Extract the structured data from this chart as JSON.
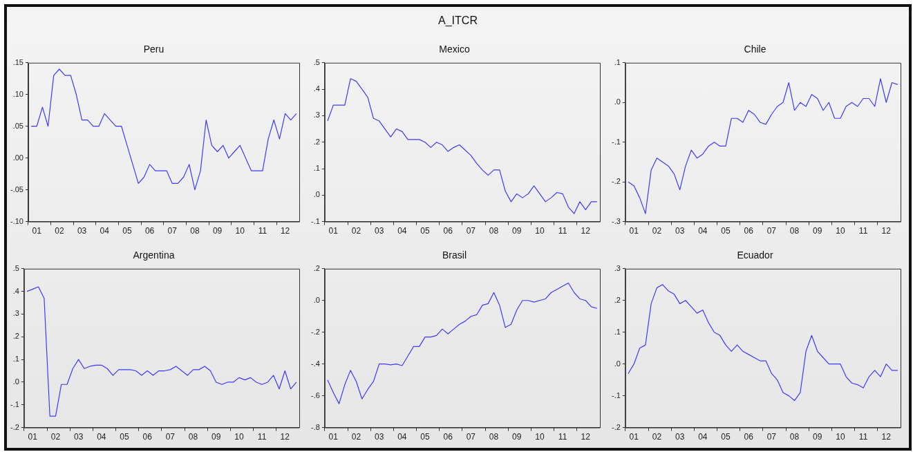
{
  "chart_data": [
    {
      "type": "other",
      "title": "A_ITCR"
    },
    {
      "type": "line",
      "title": "Peru",
      "categories": [
        null,
        "01",
        null,
        null,
        null,
        "02",
        null,
        null,
        null,
        "03",
        null,
        null,
        null,
        "04",
        null,
        null,
        null,
        "05",
        null,
        null,
        null,
        "06",
        null,
        null,
        null,
        "07",
        null,
        null,
        null,
        "08",
        null,
        null,
        null,
        "09",
        null,
        null,
        null,
        "10",
        null,
        null,
        null,
        "11",
        null,
        null,
        null,
        "12",
        null,
        null
      ],
      "series": [
        {
          "color": "#3b3bff",
          "values": [
            0.05,
            0.05,
            0.08,
            0.05,
            0.13,
            0.14,
            0.13,
            0.13,
            0.1,
            0.06,
            0.06,
            0.05,
            0.05,
            0.07,
            0.06,
            0.05,
            0.05,
            0.02,
            -0.01,
            -0.04,
            -0.03,
            -0.01,
            -0.02,
            -0.02,
            -0.02,
            -0.04,
            -0.04,
            -0.03,
            -0.01,
            -0.05,
            -0.02,
            0.06,
            0.02,
            0.01,
            0.02,
            0.0,
            0.01,
            0.02,
            0.0,
            -0.02,
            -0.02,
            -0.02,
            0.03,
            0.06,
            0.03,
            0.07,
            0.06,
            0.07
          ]
        }
      ],
      "ylim": [
        -0.1,
        0.15
      ],
      "yticks": [
        {
          "value": -0.1,
          "label": "-.10"
        },
        {
          "value": -0.05,
          "label": "-.05"
        },
        {
          "value": 0,
          "label": ".00"
        },
        {
          "value": 0.05,
          "label": ".05"
        },
        {
          "value": 0.1,
          "label": ".10"
        },
        {
          "value": 0.15,
          "label": ".15"
        }
      ]
    },
    {
      "type": "line",
      "title": "Mexico",
      "categories": [
        null,
        "01",
        null,
        null,
        null,
        "02",
        null,
        null,
        null,
        "03",
        null,
        null,
        null,
        "04",
        null,
        null,
        null,
        "05",
        null,
        null,
        null,
        "06",
        null,
        null,
        null,
        "07",
        null,
        null,
        null,
        "08",
        null,
        null,
        null,
        "09",
        null,
        null,
        null,
        "10",
        null,
        null,
        null,
        "11",
        null,
        null,
        null,
        "12",
        null,
        null
      ],
      "series": [
        {
          "color": "#3b3bff",
          "values": [
            0.28,
            0.34,
            0.34,
            0.34,
            0.44,
            0.43,
            0.4,
            0.37,
            0.29,
            0.28,
            0.25,
            0.22,
            0.25,
            0.24,
            0.21,
            0.21,
            0.21,
            0.2,
            0.18,
            0.2,
            0.19,
            0.165,
            0.18,
            0.19,
            0.17,
            0.15,
            0.12,
            0.095,
            0.075,
            0.095,
            0.095,
            0.015,
            -0.025,
            0.005,
            -0.01,
            0.005,
            0.035,
            0.005,
            -0.025,
            -0.01,
            0.01,
            0.005,
            -0.045,
            -0.07,
            -0.025,
            -0.055,
            -0.025,
            -0.025
          ]
        }
      ],
      "ylim": [
        -0.1,
        0.5
      ],
      "yticks": [
        {
          "value": -0.1,
          "label": "-.1"
        },
        {
          "value": 0,
          "label": ".0"
        },
        {
          "value": 0.1,
          "label": ".1"
        },
        {
          "value": 0.2,
          "label": ".2"
        },
        {
          "value": 0.3,
          "label": ".3"
        },
        {
          "value": 0.4,
          "label": ".4"
        },
        {
          "value": 0.5,
          "label": ".5"
        }
      ]
    },
    {
      "type": "line",
      "title": "Chile",
      "categories": [
        null,
        "01",
        null,
        null,
        null,
        "02",
        null,
        null,
        null,
        "03",
        null,
        null,
        null,
        "04",
        null,
        null,
        null,
        "05",
        null,
        null,
        null,
        "06",
        null,
        null,
        null,
        "07",
        null,
        null,
        null,
        "08",
        null,
        null,
        null,
        "09",
        null,
        null,
        null,
        "10",
        null,
        null,
        null,
        "11",
        null,
        null,
        null,
        "12",
        null,
        null
      ],
      "series": [
        {
          "color": "#3b3bff",
          "values": [
            -0.2,
            -0.21,
            -0.24,
            -0.28,
            -0.17,
            -0.14,
            -0.15,
            -0.16,
            -0.18,
            -0.22,
            -0.16,
            -0.12,
            -0.14,
            -0.13,
            -0.11,
            -0.1,
            -0.11,
            -0.11,
            -0.04,
            -0.04,
            -0.05,
            -0.02,
            -0.03,
            -0.05,
            -0.055,
            -0.03,
            -0.01,
            0.0,
            0.05,
            -0.02,
            0.0,
            -0.01,
            0.02,
            0.01,
            -0.02,
            0.0,
            -0.04,
            -0.04,
            -0.01,
            0.0,
            -0.01,
            0.01,
            0.01,
            -0.01,
            0.06,
            0.0,
            0.05,
            0.045
          ]
        }
      ],
      "ylim": [
        -0.3,
        0.1
      ],
      "yticks": [
        {
          "value": -0.3,
          "label": "-.3"
        },
        {
          "value": -0.2,
          "label": "-.2"
        },
        {
          "value": -0.1,
          "label": "-.1"
        },
        {
          "value": 0,
          "label": ".0"
        },
        {
          "value": 0.1,
          "label": ".1"
        }
      ]
    },
    {
      "type": "line",
      "title": "Argentina",
      "categories": [
        null,
        "01",
        null,
        null,
        null,
        "02",
        null,
        null,
        null,
        "03",
        null,
        null,
        null,
        "04",
        null,
        null,
        null,
        "05",
        null,
        null,
        null,
        "06",
        null,
        null,
        null,
        "07",
        null,
        null,
        null,
        "08",
        null,
        null,
        null,
        "09",
        null,
        null,
        null,
        "10",
        null,
        null,
        null,
        "11",
        null,
        null,
        null,
        "12",
        null,
        null
      ],
      "series": [
        {
          "color": "#3b3bff",
          "values": [
            0.4,
            0.41,
            0.42,
            0.37,
            -0.15,
            -0.15,
            -0.01,
            -0.01,
            0.06,
            0.1,
            0.06,
            0.07,
            0.075,
            0.075,
            0.06,
            0.03,
            0.055,
            0.055,
            0.055,
            0.05,
            0.03,
            0.05,
            0.03,
            0.05,
            0.05,
            0.055,
            0.07,
            0.05,
            0.03,
            0.055,
            0.055,
            0.07,
            0.05,
            0.0,
            -0.01,
            0.0,
            0.0,
            0.02,
            0.01,
            0.02,
            0.0,
            -0.01,
            0.0,
            0.03,
            -0.03,
            0.05,
            -0.03,
            0.0
          ]
        }
      ],
      "ylim": [
        -0.2,
        0.5
      ],
      "yticks": [
        {
          "value": -0.2,
          "label": "-.2"
        },
        {
          "value": -0.1,
          "label": "-.1"
        },
        {
          "value": 0,
          "label": ".0"
        },
        {
          "value": 0.1,
          "label": ".1"
        },
        {
          "value": 0.2,
          "label": ".2"
        },
        {
          "value": 0.3,
          "label": ".3"
        },
        {
          "value": 0.4,
          "label": ".4"
        },
        {
          "value": 0.5,
          "label": ".5"
        }
      ]
    },
    {
      "type": "line",
      "title": "Brasil",
      "categories": [
        null,
        "01",
        null,
        null,
        null,
        "02",
        null,
        null,
        null,
        "03",
        null,
        null,
        null,
        "04",
        null,
        null,
        null,
        "05",
        null,
        null,
        null,
        "06",
        null,
        null,
        null,
        "07",
        null,
        null,
        null,
        "08",
        null,
        null,
        null,
        "09",
        null,
        null,
        null,
        "10",
        null,
        null,
        null,
        "11",
        null,
        null,
        null,
        "12",
        null,
        null
      ],
      "series": [
        {
          "color": "#3b3bff",
          "values": [
            -0.5,
            -0.58,
            -0.65,
            -0.53,
            -0.44,
            -0.51,
            -0.62,
            -0.56,
            -0.51,
            -0.4,
            -0.4,
            -0.405,
            -0.4,
            -0.41,
            -0.35,
            -0.29,
            -0.29,
            -0.23,
            -0.23,
            -0.22,
            -0.18,
            -0.21,
            -0.18,
            -0.15,
            -0.13,
            -0.1,
            -0.09,
            -0.03,
            -0.02,
            0.05,
            -0.03,
            -0.17,
            -0.15,
            -0.06,
            0.0,
            0.0,
            -0.01,
            0.0,
            0.01,
            0.05,
            0.07,
            0.09,
            0.11,
            0.05,
            0.01,
            0.0,
            -0.04,
            -0.05
          ]
        }
      ],
      "ylim": [
        -0.8,
        0.2
      ],
      "yticks": [
        {
          "value": -0.8,
          "label": "-.8"
        },
        {
          "value": -0.6,
          "label": "-.6"
        },
        {
          "value": -0.4,
          "label": "-.4"
        },
        {
          "value": -0.2,
          "label": "-.2"
        },
        {
          "value": 0,
          "label": ".0"
        },
        {
          "value": 0.2,
          "label": ".2"
        }
      ]
    },
    {
      "type": "line",
      "title": "Ecuador",
      "categories": [
        null,
        "01",
        null,
        null,
        null,
        "02",
        null,
        null,
        null,
        "03",
        null,
        null,
        null,
        "04",
        null,
        null,
        null,
        "05",
        null,
        null,
        null,
        "06",
        null,
        null,
        null,
        "07",
        null,
        null,
        null,
        "08",
        null,
        null,
        null,
        "09",
        null,
        null,
        null,
        "10",
        null,
        null,
        null,
        "11",
        null,
        null,
        null,
        "12",
        null,
        null
      ],
      "series": [
        {
          "color": "#3b3bff",
          "values": [
            -0.03,
            0.0,
            0.05,
            0.06,
            0.19,
            0.24,
            0.25,
            0.23,
            0.22,
            0.19,
            0.2,
            0.18,
            0.16,
            0.17,
            0.13,
            0.1,
            0.09,
            0.06,
            0.04,
            0.06,
            0.04,
            0.03,
            0.02,
            0.01,
            0.01,
            -0.03,
            -0.05,
            -0.09,
            -0.1,
            -0.115,
            -0.09,
            0.04,
            0.09,
            0.04,
            0.02,
            0.0,
            0.0,
            0.0,
            -0.04,
            -0.06,
            -0.065,
            -0.075,
            -0.04,
            -0.02,
            -0.04,
            0.0,
            -0.02,
            -0.02
          ]
        }
      ],
      "ylim": [
        -0.2,
        0.3
      ],
      "yticks": [
        {
          "value": -0.2,
          "label": "-.2"
        },
        {
          "value": -0.1,
          "label": "-.1"
        },
        {
          "value": 0,
          "label": ".0"
        },
        {
          "value": 0.1,
          "label": ".1"
        },
        {
          "value": 0.2,
          "label": ".2"
        },
        {
          "value": 0.3,
          "label": ".3"
        }
      ]
    }
  ]
}
